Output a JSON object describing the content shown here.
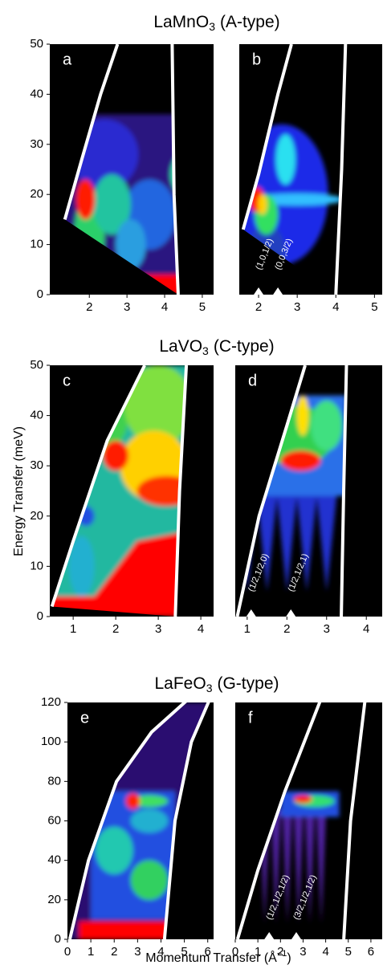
{
  "labels": {
    "ylabel": "Energy Transfer (meV)",
    "xlabel": {
      "text": "Momentum Transfer (Å",
      "superscript": "−1",
      "suffix": ")"
    }
  },
  "chart_data": [
    {
      "type": "image",
      "title": {
        "formula": "LaMnO",
        "subscript": "3",
        "suffix": "(A-type)"
      },
      "panel_label": "a",
      "xlim": [
        0.95,
        5.3
      ],
      "ylim": [
        0,
        50
      ],
      "xticks": [
        2,
        3,
        4,
        5
      ],
      "yticks": [
        0,
        10,
        20,
        30,
        40,
        50
      ]
    },
    {
      "type": "image",
      "panel_label": "b",
      "xlim": [
        1.5,
        5.2
      ],
      "ylim": [
        0,
        50
      ],
      "xticks": [
        2,
        3,
        4,
        5
      ],
      "annotations": [
        "(1,0,1/2)",
        "(0,0,3/2)"
      ]
    },
    {
      "type": "image",
      "title": {
        "formula": "LaVO",
        "subscript": "3",
        "suffix": "(C-type)"
      },
      "panel_label": "c",
      "xlim": [
        0.45,
        4.3
      ],
      "ylim": [
        0,
        50
      ],
      "xticks": [
        1,
        2,
        3,
        4
      ],
      "yticks": [
        0,
        10,
        20,
        30,
        40,
        50
      ]
    },
    {
      "type": "image",
      "panel_label": "d",
      "xlim": [
        0.7,
        4.4
      ],
      "ylim": [
        0,
        50
      ],
      "xticks": [
        1,
        2,
        3,
        4
      ],
      "annotations": [
        "(1/2,1/2,0)",
        "(1/2,1/2,1)"
      ]
    },
    {
      "type": "image",
      "title": {
        "formula": "LaFeO",
        "subscript": "3",
        "suffix": "(G-type)"
      },
      "panel_label": "e",
      "xlim": [
        0,
        6.25
      ],
      "ylim": [
        0,
        120
      ],
      "xticks": [
        0,
        1,
        2,
        3,
        4,
        5,
        6
      ],
      "yticks": [
        0,
        20,
        40,
        60,
        80,
        100,
        120
      ]
    },
    {
      "type": "image",
      "panel_label": "f",
      "xlim": [
        0,
        6.5
      ],
      "ylim": [
        0,
        120
      ],
      "xticks": [
        0,
        1,
        2,
        3,
        4,
        5,
        6
      ],
      "annotations": [
        "(1/2,1/2,1/2)",
        "(3/2,1/2,1/2)"
      ]
    }
  ]
}
